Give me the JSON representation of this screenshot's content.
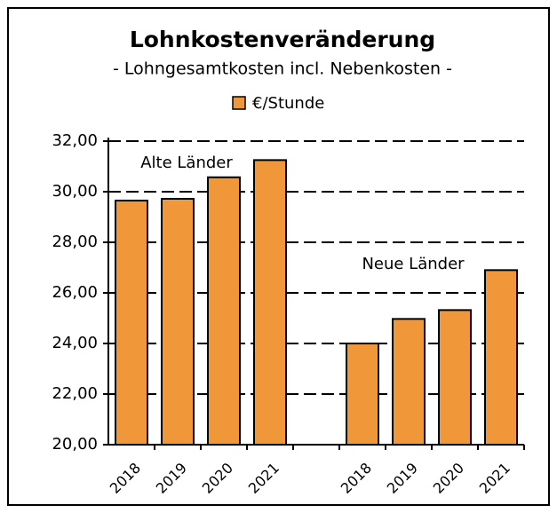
{
  "chart_data": {
    "type": "bar",
    "title": "Lohnkostenveränderung",
    "subtitle": "- Lohngesamtkosten incl. Nebenkosten -",
    "annotations": [
      "Alte Länder",
      "Neue Länder"
    ],
    "categories": [
      "2018",
      "2019",
      "2020",
      "2021",
      null,
      "2018",
      "2019",
      "2020",
      "2021"
    ],
    "series": [
      {
        "name": "€/Stunde",
        "color": "#f0973a",
        "values": [
          29.65,
          29.72,
          30.57,
          31.25,
          null,
          24.0,
          24.97,
          25.32,
          26.9
        ]
      }
    ],
    "ylim": [
      20,
      32
    ],
    "yticks": [
      {
        "value": 20,
        "label": "20,00"
      },
      {
        "value": 22,
        "label": "22,00"
      },
      {
        "value": 24,
        "label": "24,00"
      },
      {
        "value": 26,
        "label": "26,00"
      },
      {
        "value": 28,
        "label": "28,00"
      },
      {
        "value": 30,
        "label": "30,00"
      },
      {
        "value": 32,
        "label": "32,00"
      }
    ],
    "grid": true
  }
}
